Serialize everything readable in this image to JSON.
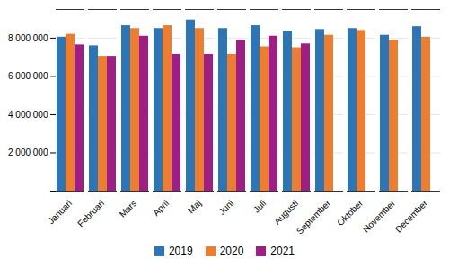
{
  "chart_data": {
    "type": "bar",
    "categories": [
      "Januari",
      "Februari",
      "Mars",
      "April",
      "Maj",
      "Juni",
      "Juli",
      "Augusti",
      "September",
      "Oktober",
      "November",
      "December"
    ],
    "series": [
      {
        "name": "2019",
        "color": "#2e75b6",
        "values": [
          8050000,
          7600000,
          8650000,
          8500000,
          8950000,
          8500000,
          8650000,
          8350000,
          8450000,
          8500000,
          8150000,
          8600000
        ]
      },
      {
        "name": "2020",
        "color": "#ed7d31",
        "values": [
          8200000,
          7050000,
          8500000,
          8650000,
          8500000,
          7150000,
          7550000,
          7500000,
          8150000,
          8400000,
          7900000,
          8050000
        ]
      },
      {
        "name": "2021",
        "color": "#9e1f83",
        "values": [
          7650000,
          7050000,
          8100000,
          7150000,
          7150000,
          7900000,
          8100000,
          7700000,
          null,
          null,
          null,
          null
        ]
      }
    ],
    "ylim": [
      0,
      9500000
    ],
    "yticks": [
      {
        "value": 0,
        "label": ""
      },
      {
        "value": 2000000,
        "label": "2 000 000"
      },
      {
        "value": 4000000,
        "label": "4 000 000"
      },
      {
        "value": 6000000,
        "label": "6 000 000"
      },
      {
        "value": 8000000,
        "label": "8 000 000"
      }
    ],
    "grid": true,
    "legend": "bottom"
  }
}
